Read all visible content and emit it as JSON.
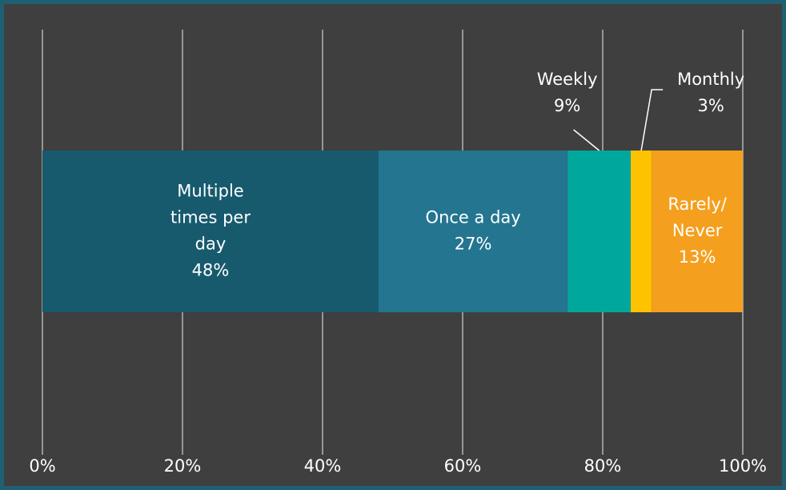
{
  "chart_data": {
    "type": "stacked_bar_horizontal",
    "categories": [
      null
    ],
    "series": [
      {
        "name": "Multiple times per day",
        "color": "#175a6e",
        "values": [
          48
        ],
        "value_labels": [
          "48%"
        ]
      },
      {
        "name": "Once a day",
        "color": "#237590",
        "values": [
          27
        ],
        "value_labels": [
          "27%"
        ]
      },
      {
        "name": "Weekly",
        "color": "#00a79c",
        "values": [
          9
        ],
        "value_labels": [
          "9%"
        ]
      },
      {
        "name": "Monthly",
        "color": "#fec200",
        "values": [
          3
        ],
        "value_labels": [
          "3%"
        ]
      },
      {
        "name": "Rarely/Never",
        "color": "#f59f1e",
        "values": [
          13
        ],
        "value_labels": [
          "13%"
        ]
      }
    ],
    "xlim": [
      0,
      100
    ],
    "xticks": [
      {
        "value": 0,
        "label": "0%"
      },
      {
        "value": 20,
        "label": "20%"
      },
      {
        "value": 40,
        "label": "40%"
      },
      {
        "value": 60,
        "label": "60%"
      },
      {
        "value": 80,
        "label": "80%"
      },
      {
        "value": 100,
        "label": "100%"
      }
    ],
    "grid": true
  }
}
